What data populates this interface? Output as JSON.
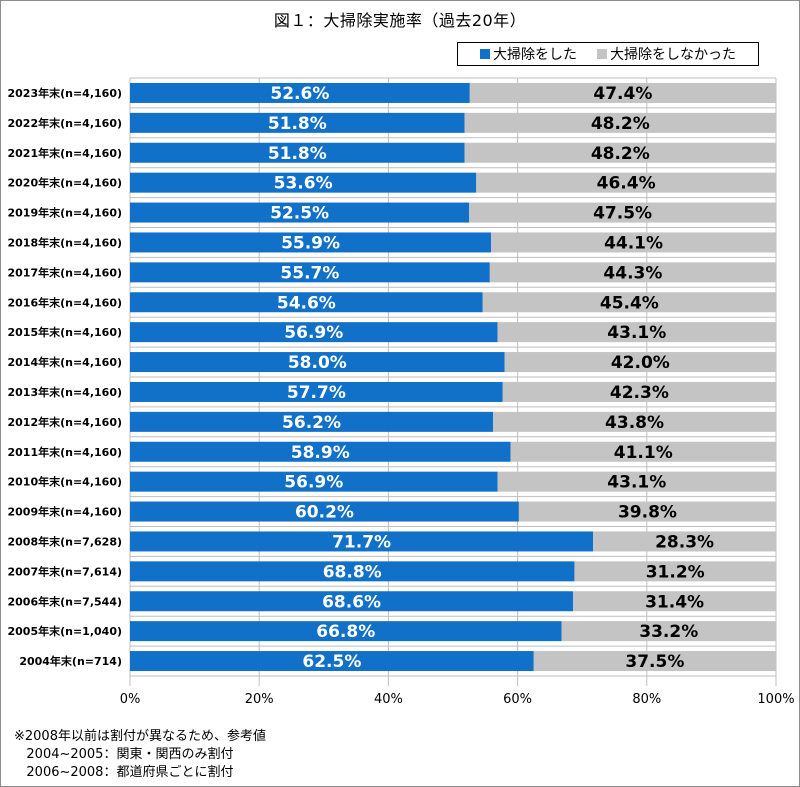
{
  "colors": {
    "did_clean": "#1170C7",
    "did_not_clean": "#C4C4C4",
    "grid": "#BFBFBF"
  },
  "chart_data": {
    "type": "bar",
    "orientation": "horizontal",
    "stacked": true,
    "stack_mode": "percent",
    "title": "図１：大掃除実施率（過去20年）",
    "xlabel": "",
    "ylabel": "",
    "xlim": [
      0,
      100
    ],
    "x_ticks": [
      "0%",
      "20%",
      "40%",
      "60%",
      "80%",
      "100%"
    ],
    "grid": true,
    "legend_position": "top-right",
    "categories": [
      "2023年末(n=4,160)",
      "2022年末(n=4,160)",
      "2021年末(n=4,160)",
      "2020年末(n=4,160)",
      "2019年末(n=4,160)",
      "2018年末(n=4,160)",
      "2017年末(n=4,160)",
      "2016年末(n=4,160)",
      "2015年末(n=4,160)",
      "2014年末(n=4,160)",
      "2013年末(n=4,160)",
      "2012年末(n=4,160)",
      "2011年末(n=4,160)",
      "2010年末(n=4,160)",
      "2009年末(n=4,160)",
      "2008年末(n=7,628)",
      "2007年末(n=7,614)",
      "2006年末(n=7,544)",
      "2005年末(n=1,040)",
      "2004年末(n=714)"
    ],
    "series": [
      {
        "name": "大掃除をした",
        "values": [
          52.6,
          51.8,
          51.8,
          53.6,
          52.5,
          55.9,
          55.7,
          54.6,
          56.9,
          58.0,
          57.7,
          56.2,
          58.9,
          56.9,
          60.2,
          71.7,
          68.8,
          68.6,
          66.8,
          62.5
        ],
        "labels": [
          "52.6%",
          "51.8%",
          "51.8%",
          "53.6%",
          "52.5%",
          "55.9%",
          "55.7%",
          "54.6%",
          "56.9%",
          "58.0%",
          "57.7%",
          "56.2%",
          "58.9%",
          "56.9%",
          "60.2%",
          "71.7%",
          "68.8%",
          "68.6%",
          "66.8%",
          "62.5%"
        ]
      },
      {
        "name": "大掃除をしなかった",
        "values": [
          47.4,
          48.2,
          48.2,
          46.4,
          47.5,
          44.1,
          44.3,
          45.4,
          43.1,
          42.0,
          42.3,
          43.8,
          41.1,
          43.1,
          39.8,
          28.3,
          31.2,
          31.4,
          33.2,
          37.5
        ],
        "labels": [
          "47.4%",
          "48.2%",
          "48.2%",
          "46.4%",
          "47.5%",
          "44.1%",
          "44.3%",
          "45.4%",
          "43.1%",
          "42.0%",
          "42.3%",
          "43.8%",
          "41.1%",
          "43.1%",
          "39.8%",
          "28.3%",
          "31.2%",
          "31.4%",
          "33.2%",
          "37.5%"
        ]
      }
    ]
  },
  "notes": [
    "※2008年以前は割付が異なるため、参考値",
    "   2004~2005：関東・関西のみ割付",
    "   2006~2008：都道府県ごとに割付"
  ]
}
